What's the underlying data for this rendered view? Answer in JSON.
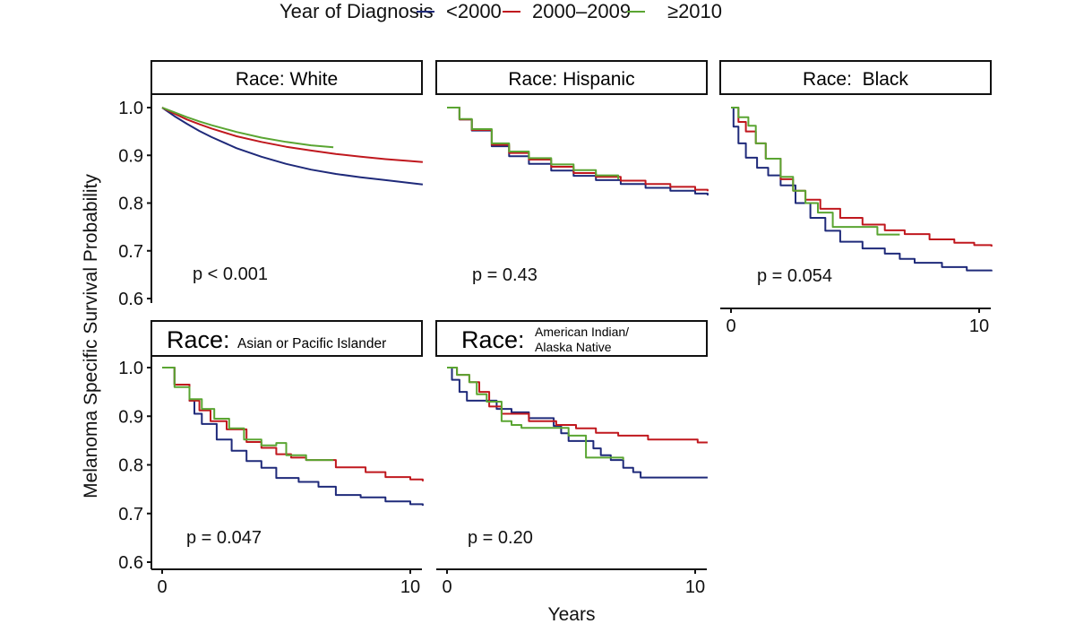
{
  "chart_data": {
    "type": "line",
    "subtype": "kaplan-meier-step",
    "legend": {
      "title": "Year of Diagnosis",
      "placement": "top",
      "entries": [
        {
          "key": "lt2000",
          "label": "<2000",
          "color": "#1f2a7a"
        },
        {
          "key": "y2000_2009",
          "label": "2000–2009",
          "color": "#c0181e"
        },
        {
          "key": "ge2010",
          "label": "≥2010",
          "color": "#5aa532"
        }
      ]
    },
    "xlabel": "Years",
    "ylabel": "Melanoma Specific Survival Probability",
    "xlim": [
      0,
      10.5
    ],
    "ylim": [
      0.58,
      1.02
    ],
    "xticks": [
      0,
      10
    ],
    "xtick_labels": [
      "0",
      "10"
    ],
    "yticks": [
      1.0,
      0.9,
      0.8,
      0.7,
      0.6
    ],
    "ytick_labels": [
      "1.0",
      "0.9",
      "0.8",
      "0.7",
      "0.6"
    ],
    "grid": false,
    "panels": [
      {
        "id": "white",
        "strip_prefix": "Race:",
        "strip_label": "White",
        "p_value": "p < 0.001",
        "series": {
          "lt2000": {
            "x": [
              0,
              0.5,
              1,
              1.5,
              2,
              3,
              4,
              5,
              6,
              7,
              8,
              9,
              10,
              10.5
            ],
            "y": [
              1.0,
              0.982,
              0.966,
              0.951,
              0.938,
              0.915,
              0.897,
              0.882,
              0.87,
              0.861,
              0.854,
              0.848,
              0.842,
              0.839
            ]
          },
          "y2000_2009": {
            "x": [
              0,
              0.5,
              1,
              1.5,
              2,
              3,
              4,
              5,
              6,
              7,
              8,
              9,
              10,
              10.5
            ],
            "y": [
              1.0,
              0.987,
              0.975,
              0.965,
              0.956,
              0.94,
              0.928,
              0.918,
              0.91,
              0.903,
              0.897,
              0.892,
              0.888,
              0.886
            ]
          },
          "ge2010": {
            "x": [
              0,
              0.5,
              1,
              1.5,
              2,
              3,
              4,
              5,
              6,
              6.9
            ],
            "y": [
              1.0,
              0.99,
              0.98,
              0.971,
              0.963,
              0.949,
              0.937,
              0.928,
              0.921,
              0.917
            ]
          }
        }
      },
      {
        "id": "hispanic",
        "strip_prefix": "Race:",
        "strip_label": "Hispanic",
        "p_value": "p = 0.43",
        "series": {
          "lt2000": {
            "x": [
              0,
              0.5,
              1,
              1.8,
              2.5,
              3.3,
              4.2,
              5.1,
              6,
              7,
              8,
              9,
              10,
              10.5
            ],
            "y": [
              1.0,
              0.975,
              0.952,
              0.919,
              0.898,
              0.882,
              0.868,
              0.857,
              0.848,
              0.84,
              0.832,
              0.826,
              0.82,
              0.816
            ]
          },
          "y2000_2009": {
            "x": [
              0,
              0.5,
              1,
              1.8,
              2.5,
              3.3,
              4.2,
              5.1,
              6,
              7,
              8,
              9,
              10,
              10.5
            ],
            "y": [
              1.0,
              0.975,
              0.953,
              0.922,
              0.905,
              0.891,
              0.876,
              0.863,
              0.855,
              0.847,
              0.84,
              0.834,
              0.828,
              0.825
            ]
          },
          "ge2010": {
            "x": [
              0,
              0.5,
              1,
              1.8,
              2.5,
              3.3,
              4.2,
              5.1,
              6,
              6.9
            ],
            "y": [
              1.0,
              0.976,
              0.955,
              0.925,
              0.908,
              0.894,
              0.881,
              0.869,
              0.858,
              0.85
            ]
          }
        }
      },
      {
        "id": "black",
        "strip_prefix": "Race:",
        "strip_label": " Black",
        "p_value": "p = 0.054",
        "series": {
          "lt2000": {
            "x": [
              0,
              0.1,
              0.3,
              0.6,
              1.05,
              1.5,
              2,
              2.6,
              3.2,
              3.8,
              4.4,
              5.3,
              6.2,
              6.8,
              7.4,
              8.5,
              9.5,
              10.5
            ],
            "y": [
              1.0,
              0.96,
              0.925,
              0.895,
              0.874,
              0.858,
              0.837,
              0.8,
              0.769,
              0.742,
              0.719,
              0.705,
              0.694,
              0.683,
              0.675,
              0.666,
              0.659,
              0.657
            ]
          },
          "y2000_2009": {
            "x": [
              0,
              0.3,
              0.6,
              1,
              1.4,
              2,
              2.5,
              3,
              3.6,
              4.4,
              5.3,
              6.2,
              7,
              8,
              9,
              9.8,
              10.5
            ],
            "y": [
              1.0,
              0.97,
              0.95,
              0.925,
              0.893,
              0.85,
              0.826,
              0.807,
              0.788,
              0.769,
              0.755,
              0.743,
              0.735,
              0.724,
              0.717,
              0.712,
              0.709
            ]
          },
          "ge2010": {
            "x": [
              0,
              0.3,
              0.7,
              1,
              1.4,
              2,
              2.5,
              3,
              3.5,
              4.1,
              5.9,
              6.8
            ],
            "y": [
              1.0,
              0.98,
              0.962,
              0.925,
              0.893,
              0.855,
              0.826,
              0.8,
              0.78,
              0.75,
              0.734,
              0.734
            ]
          }
        }
      },
      {
        "id": "asian_pi",
        "strip_prefix": "Race:",
        "strip_label": "Asian or Pacific Islander",
        "p_value": "p = 0.047",
        "series": {
          "lt2000": {
            "x": [
              0,
              0.5,
              1.1,
              1.3,
              1.6,
              2.2,
              2.8,
              3.4,
              4,
              4.6,
              5.5,
              6.3,
              7,
              8,
              9,
              10,
              10.5
            ],
            "y": [
              1.0,
              0.965,
              0.932,
              0.905,
              0.884,
              0.852,
              0.829,
              0.808,
              0.794,
              0.773,
              0.765,
              0.755,
              0.738,
              0.733,
              0.725,
              0.719,
              0.716
            ]
          },
          "y2000_2009": {
            "x": [
              0,
              0.5,
              1.1,
              1.5,
              1.95,
              2.6,
              3.4,
              4,
              4.6,
              5.2,
              5.8,
              7,
              8.2,
              9,
              10,
              10.5
            ],
            "y": [
              1.0,
              0.965,
              0.932,
              0.912,
              0.89,
              0.873,
              0.847,
              0.835,
              0.822,
              0.815,
              0.81,
              0.795,
              0.785,
              0.775,
              0.77,
              0.766
            ]
          },
          "ge2010": {
            "x": [
              0,
              0.5,
              1.1,
              1.6,
              2.1,
              2.7,
              3.3,
              4,
              4.6,
              5,
              5.8,
              6.9
            ],
            "y": [
              1.0,
              0.96,
              0.935,
              0.915,
              0.895,
              0.875,
              0.852,
              0.84,
              0.845,
              0.82,
              0.81,
              0.81
            ]
          }
        }
      },
      {
        "id": "aian",
        "strip_prefix": "Race:",
        "strip_label_lines": [
          "American Indian/",
          "Alaska Native"
        ],
        "p_value": "p = 0.20",
        "series": {
          "lt2000": {
            "x": [
              0,
              0.2,
              0.5,
              0.8,
              1.6,
              2.0,
              2.6,
              3.3,
              4.3,
              4.6,
              4.9,
              5.9,
              6.2,
              6.6,
              7.1,
              7.5,
              7.8,
              10.5
            ],
            "y": [
              1.0,
              0.975,
              0.95,
              0.932,
              0.932,
              0.915,
              0.908,
              0.896,
              0.88,
              0.865,
              0.849,
              0.834,
              0.82,
              0.81,
              0.794,
              0.785,
              0.774,
              0.774
            ]
          },
          "y2000_2009": {
            "x": [
              0,
              0.4,
              0.9,
              1.3,
              1.7,
              2.2,
              3.3,
              4.4,
              5.2,
              6,
              6.9,
              8.1,
              9.7,
              10.1,
              10.5
            ],
            "y": [
              1.0,
              0.985,
              0.97,
              0.95,
              0.92,
              0.905,
              0.89,
              0.882,
              0.875,
              0.866,
              0.86,
              0.852,
              0.852,
              0.846,
              0.846
            ]
          },
          "ge2010": {
            "x": [
              0,
              0.4,
              0.9,
              1.2,
              1.6,
              2.2,
              2.6,
              3.0,
              4.4,
              4.9,
              5.6,
              7.1
            ],
            "y": [
              1.0,
              0.985,
              0.97,
              0.945,
              0.93,
              0.89,
              0.882,
              0.876,
              0.876,
              0.86,
              0.815,
              0.81
            ]
          }
        }
      }
    ]
  }
}
